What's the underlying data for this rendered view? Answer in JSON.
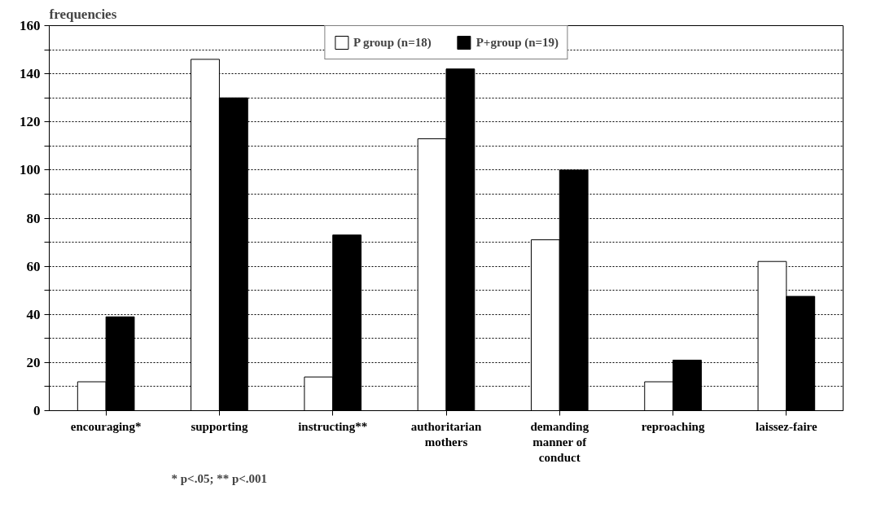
{
  "chart_data": {
    "type": "bar",
    "ylabel": "frequencies",
    "categories": [
      "encouraging*",
      "supporting",
      "instructing**",
      "authoritarian mothers",
      "demanding manner of conduct",
      "reproaching",
      "laissez-faire"
    ],
    "series": [
      {
        "name": "P group (n=18)",
        "color": "#ffffff",
        "values": [
          12,
          146,
          14,
          113,
          71,
          12,
          62
        ]
      },
      {
        "name": "P+group (n=19)",
        "color": "#000000",
        "values": [
          39,
          130,
          73,
          142,
          100,
          21,
          47.5
        ]
      }
    ],
    "ylim": [
      0,
      160
    ],
    "yticks": [
      0,
      {
        "value": 10,
        "label": null
      },
      20,
      {
        "value": 30,
        "label": null
      },
      40,
      {
        "value": 50,
        "label": null
      },
      60,
      {
        "value": 70,
        "label": null
      },
      80,
      {
        "value": 90,
        "label": null
      },
      100,
      {
        "value": 110,
        "label": null
      },
      120,
      {
        "value": 130,
        "label": null
      },
      140,
      {
        "value": 150,
        "label": null
      },
      160
    ],
    "grid": "y",
    "legend": "top",
    "annotations": [
      "* p<.05; ** p<.001"
    ]
  }
}
